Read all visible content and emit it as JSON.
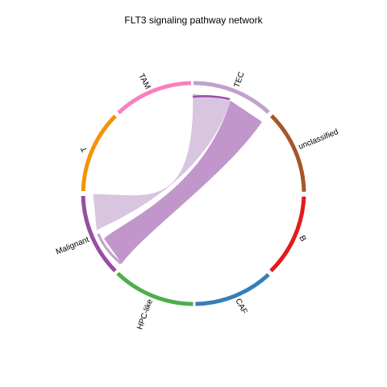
{
  "title": "FLT3 signaling pathway network",
  "sectors": [
    {
      "id": "TEC",
      "label": "TEC",
      "color": "#BFA2CE"
    },
    {
      "id": "unclassified",
      "label": "unclassified",
      "color": "#A65628"
    },
    {
      "id": "B",
      "label": "B",
      "color": "#E41A1C"
    },
    {
      "id": "CAF",
      "label": "CAF",
      "color": "#377EB8"
    },
    {
      "id": "HPC-like",
      "label": "HPC-like",
      "color": "#4DAF4A"
    },
    {
      "id": "Malignant",
      "label": "Malignant",
      "color": "#984EA3"
    },
    {
      "id": "T",
      "label": "T",
      "color": "#F29403"
    },
    {
      "id": "TAM",
      "label": "TAM",
      "color": "#F781BF"
    }
  ],
  "links": [
    {
      "from": "TEC",
      "to": "Malignant",
      "color": "#D8C5E0"
    },
    {
      "from": "TEC",
      "to": "Malignant",
      "color": "#C197CB"
    }
  ]
}
